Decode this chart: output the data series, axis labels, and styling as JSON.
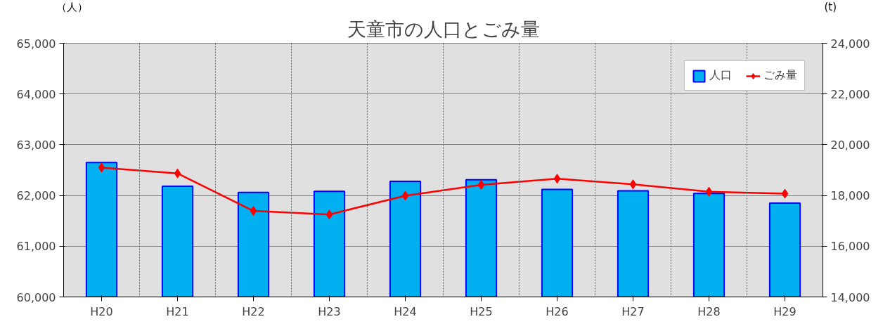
{
  "chart_data": {
    "type": "bar",
    "title": "天童市の人口とごみ量",
    "ylabel": "（人）",
    "y2label": "(t)",
    "categories": [
      "H20",
      "H21",
      "H22",
      "H23",
      "H24",
      "H25",
      "H26",
      "H27",
      "H28",
      "H29"
    ],
    "series": [
      {
        "name": "人口",
        "color": "#00b0f0",
        "values": [
          62650,
          62180,
          62060,
          62080,
          62280,
          62310,
          62120,
          62090,
          62040,
          61850
        ]
      },
      {
        "name": "ごみ量",
        "type": "line",
        "axis": "y2",
        "color": "#ff0000",
        "marker": "diamond",
        "values": [
          19100,
          18870,
          17390,
          17250,
          17990,
          18420,
          18660,
          18440,
          18150,
          18070
        ]
      }
    ],
    "ylim": [
      60000,
      65000
    ],
    "yticks": [
      {
        "value": 60000,
        "label": "60,000"
      },
      {
        "value": 61000,
        "label": "61,000"
      },
      {
        "value": 62000,
        "label": "62,000"
      },
      {
        "value": 63000,
        "label": "63,000"
      },
      {
        "value": 64000,
        "label": "64,000"
      },
      {
        "value": 65000,
        "label": "65,000"
      }
    ],
    "y2lim": [
      14000,
      24000
    ],
    "y2ticks": [
      {
        "value": 14000,
        "label": "14,000"
      },
      {
        "value": 16000,
        "label": "16,000"
      },
      {
        "value": 18000,
        "label": "18,000"
      },
      {
        "value": 20000,
        "label": "20,000"
      },
      {
        "value": 22000,
        "label": "22,000"
      },
      {
        "value": 24000,
        "label": "24,000"
      }
    ],
    "grid": true,
    "legend": "top right"
  }
}
